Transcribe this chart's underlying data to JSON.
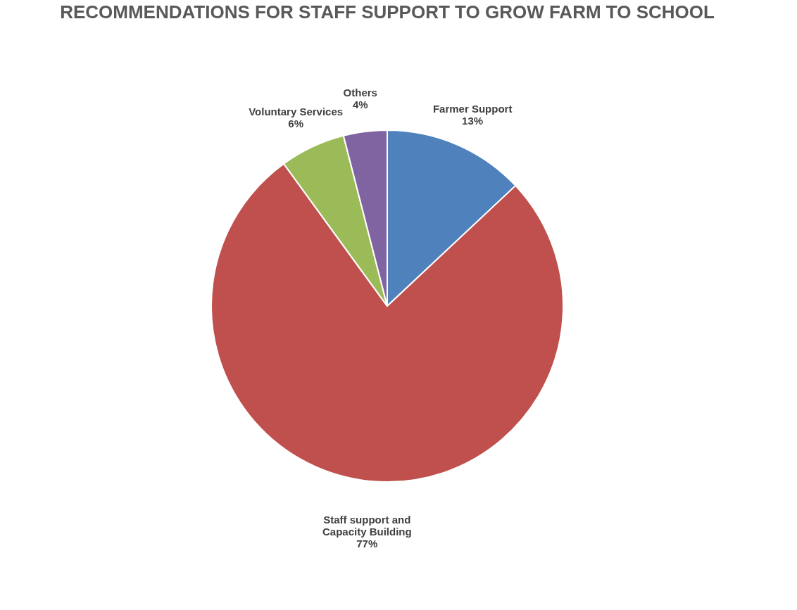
{
  "chart_data": {
    "type": "pie",
    "title": "RECOMMENDATIONS FOR STAFF SUPPORT TO GROW FARM TO SCHOOL",
    "categories": [
      "Farmer Support",
      "Staff support and\nCapacity Building",
      "Voluntary Services",
      "Others"
    ],
    "values": [
      13,
      77,
      6,
      4
    ],
    "colors": [
      "#4f81bd",
      "#c0504d",
      "#9bbb59",
      "#8064a2"
    ],
    "value_labels": [
      "13%",
      "77%",
      "6%",
      "4%"
    ]
  }
}
